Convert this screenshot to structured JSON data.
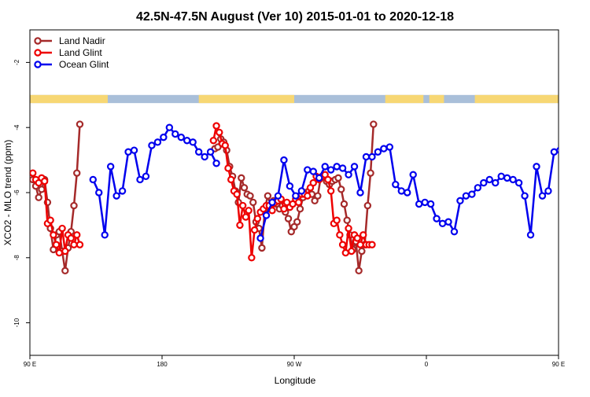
{
  "chart_data": {
    "type": "line",
    "title": "42.5N-47.5N August (Ver 10)   2015-01-01 to 2020-12-18",
    "xlabel": "Longitude",
    "ylabel": "XCO2 - MLO trend (ppm)",
    "xlim": [
      90,
      450
    ],
    "ylim": [
      -11,
      -1
    ],
    "xticks": [
      {
        "value": 90,
        "label": "90 E"
      },
      {
        "value": 180,
        "label": "180"
      },
      {
        "value": 270,
        "label": "90 W"
      },
      {
        "value": 360,
        "label": "0"
      },
      {
        "value": 450,
        "label": "90 E"
      },
      {
        "value": 540,
        "label": "180"
      }
    ],
    "yticks": [
      {
        "value": -2,
        "label": "-2"
      },
      {
        "value": -4,
        "label": "-4"
      },
      {
        "value": -6,
        "label": "-6"
      },
      {
        "value": -8,
        "label": "-8"
      },
      {
        "value": -10,
        "label": "-10"
      }
    ],
    "grid": false,
    "legend_position": "top-left",
    "land_mask_band": {
      "y_range": [
        -3.25,
        -3.0
      ],
      "land_color": "#f7d774",
      "ocean_color": "#a9bfd9",
      "land_segments": [
        [
          90,
          143
        ],
        [
          205,
          270
        ],
        [
          332,
          358
        ],
        [
          362,
          372
        ],
        [
          393,
          488
        ]
      ]
    },
    "series": [
      {
        "name": "Land Nadir",
        "color": "#a52a2a",
        "x": [
          92,
          94,
          96,
          98,
          100,
          102,
          104,
          106,
          108,
          110,
          112,
          114,
          116,
          118,
          120,
          122,
          124,
          216,
          218,
          220,
          222,
          224,
          226,
          228,
          230,
          232,
          234,
          236,
          238,
          240,
          242,
          244,
          246,
          248,
          250,
          252,
          254,
          256,
          258,
          260,
          262,
          264,
          266,
          268,
          270,
          272,
          274,
          276,
          278,
          280,
          282,
          284,
          286,
          288,
          290,
          292,
          294,
          296,
          298,
          300,
          302,
          304,
          306,
          308,
          310,
          312,
          314,
          316,
          318,
          320,
          322,
          324
        ],
        "values": [
          -5.6,
          -5.8,
          -6.15,
          -5.9,
          -5.6,
          -6.3,
          -7.1,
          -7.75,
          -7.3,
          -7.2,
          -7.8,
          -8.4,
          -7.7,
          -7.2,
          -6.4,
          -5.4,
          -3.9,
          -4.65,
          -4.6,
          -4.35,
          -4.45,
          -4.7,
          -5.2,
          -5.5,
          -5.95,
          -6.3,
          -5.55,
          -5.85,
          -6.05,
          -6.1,
          -6.3,
          -6.9,
          -7.1,
          -7.7,
          -6.5,
          -6.1,
          -6.4,
          -6.25,
          -6.35,
          -6.5,
          -6.4,
          -6.6,
          -6.8,
          -7.2,
          -7.05,
          -6.9,
          -6.5,
          -6.15,
          -6.0,
          -5.95,
          -6.05,
          -6.25,
          -6.1,
          -5.55,
          -5.5,
          -5.65,
          -5.75,
          -5.65,
          -5.6,
          -5.55,
          -5.9,
          -6.35,
          -6.85,
          -7.3,
          -7.75,
          -7.5,
          -8.4,
          -7.8,
          -7.6,
          -6.4,
          -5.4,
          -3.9
        ],
        "note_x_is_unwrapped_longitude": true
      },
      {
        "name": "Land Glint",
        "color": "#ee0000",
        "x": [
          92,
          94,
          96,
          98,
          100,
          102,
          104,
          106,
          108,
          110,
          112,
          114,
          116,
          118,
          120,
          122,
          124,
          215,
          217,
          219,
          221,
          223,
          225,
          227,
          229,
          231,
          233,
          235,
          237,
          239,
          241,
          243,
          245,
          247,
          249,
          251,
          253,
          255,
          257,
          259,
          261,
          263,
          265,
          267,
          269,
          271,
          273,
          275,
          277,
          279,
          281,
          283,
          285,
          287,
          289,
          291,
          293,
          295,
          297,
          299,
          301,
          303,
          305,
          307,
          309,
          311,
          313,
          315,
          317,
          319,
          321,
          323
        ],
        "values": [
          -5.4,
          -5.6,
          -5.7,
          -5.55,
          -5.65,
          -6.95,
          -6.85,
          -7.3,
          -7.6,
          -7.85,
          -7.1,
          -7.8,
          -7.3,
          -7.4,
          -7.6,
          -7.3,
          -7.6,
          -4.4,
          -3.95,
          -4.15,
          -4.5,
          -4.55,
          -5.25,
          -5.6,
          -5.95,
          -6.05,
          -7.0,
          -6.4,
          -6.75,
          -6.55,
          -8.0,
          -7.15,
          -6.8,
          -6.6,
          -6.5,
          -6.4,
          -6.4,
          -6.55,
          -6.3,
          -6.25,
          -6.2,
          -6.5,
          -6.3,
          -6.45,
          -6.35,
          -6.2,
          -6.3,
          -6.05,
          -6.05,
          -6.1,
          -5.85,
          -5.7,
          -5.5,
          -5.6,
          -5.5,
          -5.45,
          -5.6,
          -5.95,
          -6.95,
          -6.85,
          -7.3,
          -7.6,
          -7.85,
          -7.1,
          -7.8,
          -7.3,
          -7.4,
          -7.6,
          -7.3,
          -7.6,
          -7.6,
          -7.6
        ]
      },
      {
        "name": "Ocean Glint",
        "color": "#0000ee",
        "x": [
          133,
          137,
          141,
          145,
          149,
          153,
          157,
          161,
          165,
          169,
          173,
          177,
          181,
          185,
          189,
          193,
          197,
          201,
          205,
          209,
          213,
          217,
          247,
          251,
          255,
          259,
          263,
          267,
          271,
          275,
          279,
          283,
          287,
          291,
          295,
          299,
          303,
          307,
          311,
          315,
          319,
          323,
          327,
          331,
          335,
          339,
          343,
          347,
          351,
          355,
          359,
          363,
          367,
          371,
          375,
          379,
          383,
          387,
          391,
          395,
          399,
          403,
          407,
          411,
          415,
          419,
          423,
          427,
          431,
          435,
          439,
          443,
          447,
          451
        ],
        "values": [
          -5.6,
          -6.0,
          -7.3,
          -5.2,
          -6.1,
          -5.95,
          -4.75,
          -4.7,
          -5.6,
          -5.5,
          -4.55,
          -4.45,
          -4.3,
          -4.0,
          -4.2,
          -4.3,
          -4.4,
          -4.45,
          -4.75,
          -4.9,
          -4.75,
          -5.1,
          -7.4,
          -6.7,
          -6.3,
          -6.1,
          -5.0,
          -5.8,
          -6.1,
          -5.95,
          -5.3,
          -5.35,
          -5.55,
          -5.2,
          -5.3,
          -5.2,
          -5.25,
          -5.45,
          -5.2,
          -6.0,
          -4.9,
          -4.9,
          -4.75,
          -4.65,
          -4.6,
          -5.75,
          -5.95,
          -6.0,
          -5.45,
          -6.35,
          -6.3,
          -6.35,
          -6.8,
          -6.95,
          -6.9,
          -7.2,
          -6.25,
          -6.1,
          -6.05,
          -5.85,
          -5.7,
          -5.6,
          -5.7,
          -5.5,
          -5.55,
          -5.6,
          -5.7,
          -6.1,
          -7.3,
          -5.2,
          -6.1,
          -5.95,
          -4.75,
          -4.7
        ]
      }
    ]
  }
}
